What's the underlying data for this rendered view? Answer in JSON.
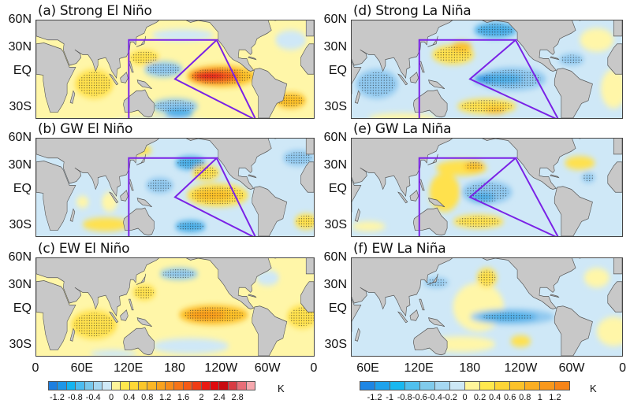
{
  "panels": [
    {
      "id": "a",
      "title": "(a) Strong El Niño"
    },
    {
      "id": "b",
      "title": "(b) GW El Niño"
    },
    {
      "id": "c",
      "title": "(c) EW El Niño"
    },
    {
      "id": "d",
      "title": "(d) Strong La Niña"
    },
    {
      "id": "e",
      "title": "(e) GW La Niña"
    },
    {
      "id": "f",
      "title": "(f) EW La Niña"
    }
  ],
  "lat_labels": [
    "60N",
    "30N",
    "EQ",
    "30S"
  ],
  "lon_labels_left": [
    "0",
    "60E",
    "120E",
    "180",
    "120W",
    "60W",
    "0"
  ],
  "lon_labels_right": [
    "60E",
    "120E",
    "180",
    "120W",
    "60W",
    "0"
  ],
  "colorbar_left": {
    "unit": "K",
    "labels": [
      "-1.2",
      "-0.8",
      "-0.4",
      "0",
      "0.4",
      "0.8",
      "1.2",
      "1.6",
      "2",
      "2.4",
      "2.8"
    ],
    "colors": [
      "#1e7fe0",
      "#1e96e8",
      "#14b4f0",
      "#4cbcf0",
      "#78c8ec",
      "#a6d8f2",
      "#cfe9f7",
      "#fff59a",
      "#ffe84d",
      "#ffd836",
      "#fcc72a",
      "#fbb625",
      "#f9a21e",
      "#f78c1a",
      "#f57418",
      "#f45a16",
      "#f03c14",
      "#ea1a12",
      "#e00a0e",
      "#c80a10",
      "#d83c44",
      "#e86e78",
      "#f7a8ae"
    ]
  },
  "colorbar_right": {
    "unit": "K",
    "labels": [
      "-1.2",
      "-1",
      "-0.8",
      "-0.6",
      "-0.4",
      "-0.2",
      "0",
      "0.2",
      "0.4",
      "0.6",
      "0.8",
      "1",
      "1.2"
    ],
    "colors": [
      "#1e86e4",
      "#1ea2ec",
      "#18b8f0",
      "#50c0ee",
      "#80cbec",
      "#a6d8f2",
      "#cde8f6",
      "#fff59a",
      "#ffe84d",
      "#fdd536",
      "#fcc22a",
      "#fbae22",
      "#f9981c",
      "#f78418"
    ]
  },
  "colors": {
    "land": "#c8c8c8",
    "box_outline": "#7a22e6"
  }
}
